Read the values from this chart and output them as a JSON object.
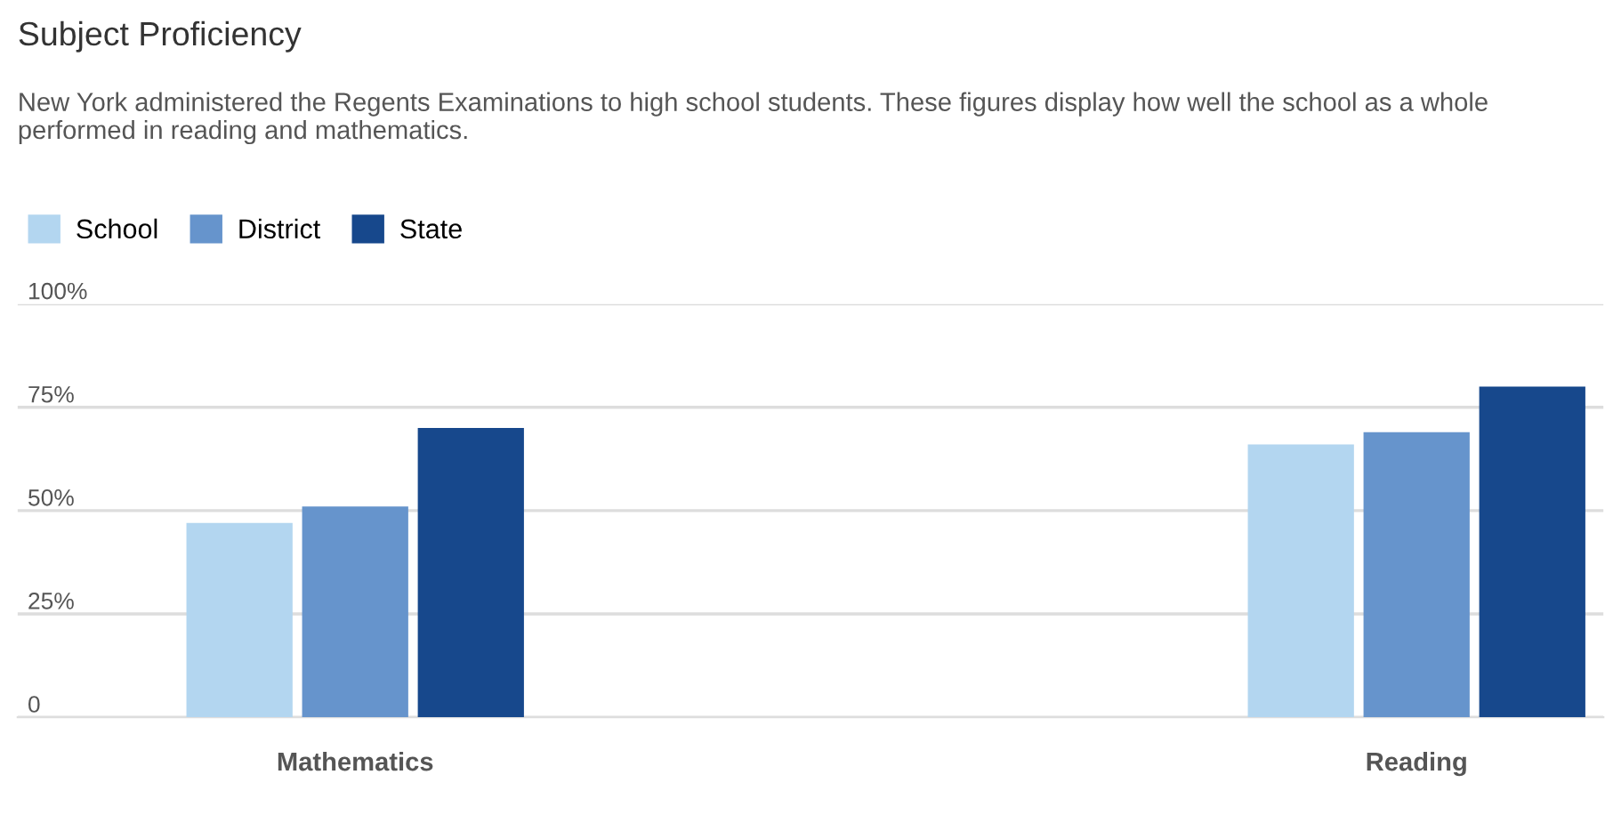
{
  "chart_data": {
    "type": "bar",
    "title": "Subject Proficiency",
    "subtitle": "New York administered the Regents Examinations to high school students. These figures display how well the school as a whole performed in reading and mathematics.",
    "categories": [
      "Mathematics",
      "Reading"
    ],
    "series": [
      {
        "name": "School",
        "color": "#b3d6f0",
        "values": [
          47,
          66
        ]
      },
      {
        "name": "District",
        "color": "#6694cc",
        "values": [
          51,
          69
        ]
      },
      {
        "name": "State",
        "color": "#17488c",
        "values": [
          70,
          80
        ]
      }
    ],
    "ylim": [
      0,
      100
    ],
    "yticks": [
      {
        "value": 0,
        "label": "0"
      },
      {
        "value": 25,
        "label": "25%"
      },
      {
        "value": 50,
        "label": "50%"
      },
      {
        "value": 75,
        "label": "75%"
      },
      {
        "value": 100,
        "label": "100%"
      }
    ],
    "grid": "y",
    "legend": "top left"
  }
}
